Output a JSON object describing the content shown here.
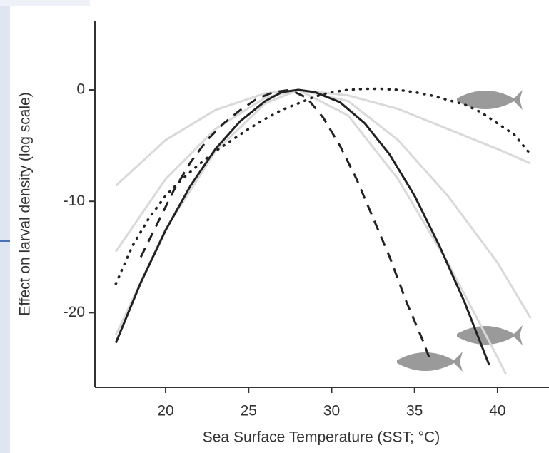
{
  "chart_data": {
    "type": "line",
    "xlabel": "Sea Surface Temperature (SST; °C)",
    "ylabel": "Effect on larval density (log scale)",
    "xlim": [
      15.74,
      43.1
    ],
    "ylim": [
      -26.7,
      6.15
    ],
    "xticks": [
      20,
      25,
      30,
      35,
      40
    ],
    "yticks": [
      0,
      -10,
      -20
    ],
    "grid": false,
    "series": [
      {
        "color": "#d9d9d9",
        "dash": "solid",
        "x": [
          17,
          20,
          23,
          26,
          28,
          31,
          34,
          37,
          40,
          42
        ],
        "values": [
          -8.6,
          -4.5,
          -1.8,
          -0.3,
          0,
          -0.5,
          -1.7,
          -3.5,
          -5.3,
          -6.6
        ]
      },
      {
        "color": "#d9d9d9",
        "dash": "solid",
        "x": [
          17,
          20,
          23,
          26,
          28,
          31,
          34,
          37,
          40,
          42
        ],
        "values": [
          -14.5,
          -8,
          -3.5,
          -0.7,
          0,
          -1,
          -4.5,
          -9.5,
          -15.5,
          -20.5
        ]
      },
      {
        "color": "#d9d9d9",
        "dash": "solid",
        "x": [
          17,
          20,
          23,
          26,
          28,
          31,
          34,
          37,
          40,
          40.5
        ],
        "values": [
          -22,
          -12.5,
          -5.5,
          -1.2,
          0,
          -2.3,
          -8,
          -15.5,
          -24,
          -25.5
        ]
      },
      {
        "color": "#222222",
        "dash": "solid",
        "x": [
          17,
          18.5,
          20,
          21.5,
          23,
          24.5,
          26,
          27,
          28,
          29,
          30.5,
          32,
          33.5,
          35,
          36.5,
          38,
          39.5
        ],
        "values": [
          -22.7,
          -17.3,
          -12.6,
          -8.6,
          -5.3,
          -2.8,
          -1,
          -0.2,
          0,
          -0.2,
          -1.1,
          -3,
          -5.8,
          -9.5,
          -14,
          -19,
          -24.7
        ]
      },
      {
        "color": "#222222",
        "dash": "dashed",
        "x": [
          18.5,
          19.5,
          20.5,
          21.5,
          22.5,
          23.5,
          24.5,
          25.5,
          26.5,
          27.5,
          28.5,
          29.5,
          30.5,
          31.5,
          32.5,
          33.5,
          34.5,
          35.5,
          36
        ],
        "values": [
          -15,
          -12,
          -9,
          -6.5,
          -4.5,
          -3,
          -1.8,
          -0.8,
          -0.2,
          0,
          -0.7,
          -2.5,
          -5,
          -8,
          -11.5,
          -15,
          -19,
          -22.5,
          -24.5
        ]
      },
      {
        "color": "#222222",
        "dash": "dotted",
        "x": [
          17,
          18,
          19,
          20,
          21,
          22,
          23,
          24,
          25,
          26,
          27,
          28,
          29,
          30,
          31,
          32,
          33,
          34,
          35,
          36,
          37,
          38,
          39,
          40,
          41,
          42
        ],
        "values": [
          -17.4,
          -14,
          -11.5,
          -9.5,
          -8,
          -6.7,
          -5.5,
          -4.5,
          -3.5,
          -2.6,
          -1.8,
          -1.2,
          -0.6,
          -0.2,
          0,
          0.1,
          0.1,
          0,
          -0.2,
          -0.5,
          -0.9,
          -1.3,
          -2,
          -3,
          -4,
          -5.8
        ]
      }
    ]
  }
}
